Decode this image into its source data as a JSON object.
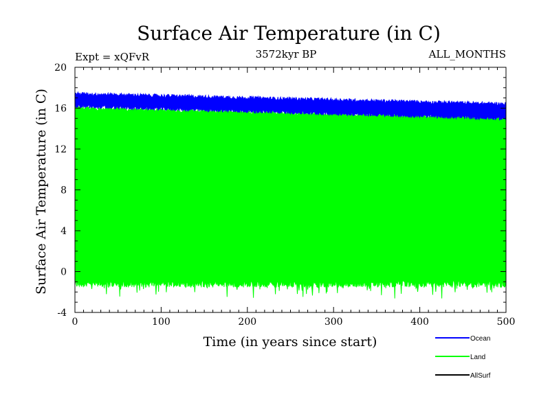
{
  "chart_data": {
    "type": "line",
    "title": "Surface Air Temperature (in C)",
    "subtitle_left": "Expt = xQFvR",
    "subtitle_center": "3572kyr BP",
    "subtitle_right": "ALL_MONTHS",
    "xlabel": "Time (in years since start)",
    "ylabel": "Surface Air Temperature (in C)",
    "xlim": [
      0,
      500
    ],
    "ylim": [
      -4,
      20
    ],
    "xticks": [
      "0",
      "100",
      "200",
      "300",
      "400",
      "500"
    ],
    "yticks": [
      "-4",
      "0",
      "4",
      "8",
      "12",
      "16",
      "20"
    ],
    "grid": false,
    "legend_position": "bottom-right",
    "series": [
      {
        "name": "Ocean",
        "color": "#0000ff",
        "band_low_start": 16.2,
        "band_low_end": 15.0,
        "band_high_start": 17.4,
        "band_high_end": 16.4
      },
      {
        "name": "Land",
        "color": "#00ff00",
        "band_low_start": -1.2,
        "band_low_end": -1.2,
        "band_high_start": 16.0,
        "band_high_end": 15.0
      },
      {
        "name": "AllSurf",
        "color": "#000000"
      }
    ]
  }
}
